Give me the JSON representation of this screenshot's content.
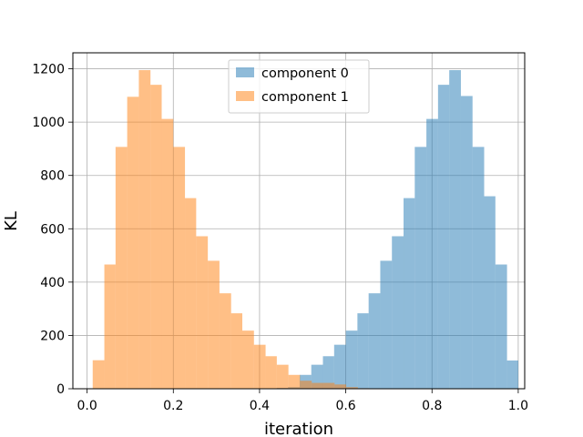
{
  "chart_data": {
    "type": "bar",
    "subtype": "overlapping-histogram",
    "title": "",
    "xlabel": "iteration",
    "ylabel": "KL",
    "xlim": [
      -0.033,
      1.015
    ],
    "ylim": [
      0,
      1260
    ],
    "x_ticks": [
      0.0,
      0.2,
      0.4,
      0.6,
      0.8,
      1.0
    ],
    "x_tick_labels": [
      "0.0",
      "0.2",
      "0.4",
      "0.6",
      "0.8",
      "1.0"
    ],
    "y_ticks": [
      0,
      200,
      400,
      600,
      800,
      1000,
      1200
    ],
    "y_tick_labels": [
      "0",
      "200",
      "400",
      "600",
      "800",
      "1000",
      "1200"
    ],
    "grid": true,
    "legend_position": "upper-center",
    "bar_alpha": 0.5,
    "series": [
      {
        "name": "component 0",
        "color": "#1f77b4",
        "bins": [
          {
            "x0": 0.413,
            "x1": 0.44,
            "count": 1
          },
          {
            "x0": 0.44,
            "x1": 0.466,
            "count": 3
          },
          {
            "x0": 0.466,
            "x1": 0.493,
            "count": 6
          },
          {
            "x0": 0.493,
            "x1": 0.52,
            "count": 52
          },
          {
            "x0": 0.52,
            "x1": 0.547,
            "count": 90
          },
          {
            "x0": 0.547,
            "x1": 0.573,
            "count": 122
          },
          {
            "x0": 0.573,
            "x1": 0.6,
            "count": 165
          },
          {
            "x0": 0.6,
            "x1": 0.627,
            "count": 218
          },
          {
            "x0": 0.627,
            "x1": 0.653,
            "count": 283
          },
          {
            "x0": 0.653,
            "x1": 0.68,
            "count": 358
          },
          {
            "x0": 0.68,
            "x1": 0.707,
            "count": 480
          },
          {
            "x0": 0.707,
            "x1": 0.734,
            "count": 572
          },
          {
            "x0": 0.734,
            "x1": 0.76,
            "count": 715
          },
          {
            "x0": 0.76,
            "x1": 0.787,
            "count": 907
          },
          {
            "x0": 0.787,
            "x1": 0.814,
            "count": 1012
          },
          {
            "x0": 0.814,
            "x1": 0.84,
            "count": 1140
          },
          {
            "x0": 0.84,
            "x1": 0.867,
            "count": 1195
          },
          {
            "x0": 0.867,
            "x1": 0.894,
            "count": 1098
          },
          {
            "x0": 0.894,
            "x1": 0.921,
            "count": 907
          },
          {
            "x0": 0.921,
            "x1": 0.947,
            "count": 722
          },
          {
            "x0": 0.947,
            "x1": 0.974,
            "count": 466
          },
          {
            "x0": 0.974,
            "x1": 1.0,
            "count": 106
          }
        ]
      },
      {
        "name": "component 1",
        "color": "#ff7f0e",
        "bins": [
          {
            "x0": 0.013,
            "x1": 0.04,
            "count": 107
          },
          {
            "x0": 0.04,
            "x1": 0.066,
            "count": 466
          },
          {
            "x0": 0.066,
            "x1": 0.093,
            "count": 907
          },
          {
            "x0": 0.093,
            "x1": 0.12,
            "count": 1095
          },
          {
            "x0": 0.12,
            "x1": 0.147,
            "count": 1195
          },
          {
            "x0": 0.147,
            "x1": 0.173,
            "count": 1140
          },
          {
            "x0": 0.173,
            "x1": 0.2,
            "count": 1012
          },
          {
            "x0": 0.2,
            "x1": 0.227,
            "count": 907
          },
          {
            "x0": 0.227,
            "x1": 0.253,
            "count": 715
          },
          {
            "x0": 0.253,
            "x1": 0.28,
            "count": 572
          },
          {
            "x0": 0.28,
            "x1": 0.307,
            "count": 480
          },
          {
            "x0": 0.307,
            "x1": 0.334,
            "count": 358
          },
          {
            "x0": 0.334,
            "x1": 0.36,
            "count": 283
          },
          {
            "x0": 0.36,
            "x1": 0.387,
            "count": 218
          },
          {
            "x0": 0.387,
            "x1": 0.414,
            "count": 165
          },
          {
            "x0": 0.414,
            "x1": 0.44,
            "count": 122
          },
          {
            "x0": 0.44,
            "x1": 0.467,
            "count": 90
          },
          {
            "x0": 0.467,
            "x1": 0.494,
            "count": 52
          },
          {
            "x0": 0.494,
            "x1": 0.521,
            "count": 30
          },
          {
            "x0": 0.521,
            "x1": 0.547,
            "count": 22
          },
          {
            "x0": 0.547,
            "x1": 0.574,
            "count": 22
          },
          {
            "x0": 0.574,
            "x1": 0.601,
            "count": 16
          },
          {
            "x0": 0.601,
            "x1": 0.628,
            "count": 6
          },
          {
            "x0": 0.628,
            "x1": 0.654,
            "count": 2
          }
        ]
      }
    ]
  }
}
